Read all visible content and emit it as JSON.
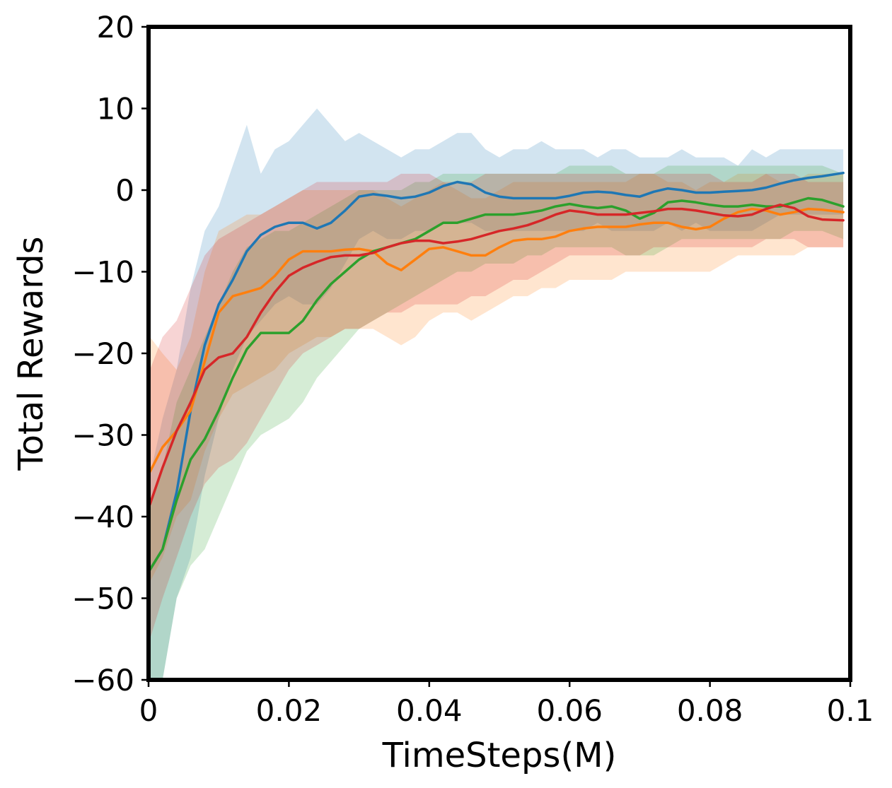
{
  "chart_data": {
    "type": "line",
    "title": "",
    "xlabel": "TimeSteps(M)",
    "ylabel": "Total Rewards",
    "xlim": [
      0,
      0.1
    ],
    "ylim": [
      -60,
      20
    ],
    "x_ticks": [
      0,
      0.02,
      0.04,
      0.06,
      0.08,
      0.1
    ],
    "x_tick_labels": [
      "0",
      "0.02",
      "0.04",
      "0.06",
      "0.08",
      "0.1"
    ],
    "y_ticks": [
      20,
      10,
      0,
      -10,
      -20,
      -30,
      -40,
      -50,
      -60
    ],
    "y_tick_labels": [
      "20",
      "10",
      "0",
      "−10",
      "−20",
      "−30",
      "−40",
      "−50",
      "−60"
    ],
    "grid": false,
    "legend": "none",
    "x": [
      0.0002,
      0.002,
      0.004,
      0.006,
      0.008,
      0.01,
      0.012,
      0.014,
      0.016,
      0.018,
      0.02,
      0.022,
      0.024,
      0.026,
      0.028,
      0.03,
      0.032,
      0.034,
      0.036,
      0.038,
      0.04,
      0.042,
      0.044,
      0.046,
      0.048,
      0.05,
      0.052,
      0.054,
      0.056,
      0.058,
      0.06,
      0.062,
      0.064,
      0.066,
      0.068,
      0.07,
      0.072,
      0.074,
      0.076,
      0.078,
      0.08,
      0.082,
      0.084,
      0.086,
      0.088,
      0.09,
      0.092,
      0.094,
      0.096,
      0.099
    ],
    "series": [
      {
        "color": "#1f77b4",
        "values": [
          -46.5,
          -44,
          -37,
          -27,
          -19,
          -14,
          -11,
          -7.5,
          -5.5,
          -4.5,
          -4,
          -4,
          -4.7,
          -4,
          -2.5,
          -0.8,
          -0.5,
          -0.7,
          -1,
          -0.8,
          -0.3,
          0.5,
          1,
          0.7,
          -0.3,
          -0.8,
          -1,
          -1,
          -1,
          -1,
          -0.7,
          -0.3,
          -0.2,
          -0.3,
          -0.6,
          -0.8,
          -0.2,
          0.2,
          0,
          -0.3,
          -0.3,
          -0.2,
          -0.1,
          0,
          0.3,
          0.8,
          1.2,
          1.5,
          1.7,
          2.1
        ],
        "upper": [
          -35,
          -28,
          -22,
          -12,
          -5,
          -2,
          3,
          8,
          2,
          5,
          6,
          8,
          10,
          8,
          6,
          7,
          6,
          5,
          4,
          5,
          5,
          6,
          7,
          7,
          5,
          4,
          5,
          5,
          6,
          5,
          5,
          5,
          4,
          5,
          5,
          4,
          4,
          4,
          5,
          4,
          4,
          4,
          3,
          5,
          4,
          5,
          5,
          5,
          5,
          5
        ],
        "lower": [
          -60,
          -60,
          -50,
          -45,
          -35,
          -28,
          -22,
          -18,
          -16,
          -14,
          -13,
          -14,
          -14,
          -12,
          -9,
          -6,
          -5,
          -6,
          -6,
          -5,
          -5,
          -4,
          -4,
          -4,
          -5,
          -5,
          -5,
          -5,
          -5,
          -5,
          -5,
          -5,
          -4,
          -5,
          -5,
          -5,
          -5,
          -4,
          -5,
          -4,
          -5,
          -5,
          -5,
          -5,
          -4,
          -3,
          -3,
          -3,
          -3,
          -3
        ]
      },
      {
        "color": "#ff7f0e",
        "values": [
          -34.5,
          -31.5,
          -29.5,
          -27,
          -21,
          -15,
          -13,
          -12.5,
          -12,
          -10.5,
          -8.5,
          -7.5,
          -7.5,
          -7.5,
          -7.3,
          -7.2,
          -7.5,
          -9,
          -9.8,
          -8.5,
          -7.2,
          -7,
          -7.5,
          -8,
          -8,
          -7,
          -6.2,
          -6,
          -6,
          -5.7,
          -5,
          -4.7,
          -4.5,
          -4.5,
          -4.5,
          -4.2,
          -4,
          -4,
          -4.5,
          -4.8,
          -4.5,
          -3.5,
          -2.7,
          -2.3,
          -2.5,
          -3,
          -2.7,
          -2.3,
          -2.4,
          -2.7
        ],
        "upper": [
          -18,
          -20,
          -22,
          -18,
          -10,
          -5,
          -4,
          -3,
          -3,
          -2,
          -1,
          0,
          0,
          0,
          0,
          0,
          0,
          -1,
          -2,
          -1,
          0,
          1,
          0,
          -1,
          -1,
          0,
          1,
          1,
          1,
          1,
          1,
          1,
          1,
          1,
          1,
          2,
          2,
          1,
          1,
          0,
          1,
          1,
          2,
          2,
          2,
          1,
          1,
          2,
          2,
          2
        ],
        "lower": [
          -48,
          -45,
          -40,
          -38,
          -32,
          -28,
          -25,
          -24,
          -23,
          -22,
          -20,
          -19,
          -18,
          -18,
          -17,
          -17,
          -17,
          -18,
          -19,
          -18,
          -16,
          -15,
          -15,
          -16,
          -15,
          -14,
          -13,
          -13,
          -12,
          -12,
          -11,
          -11,
          -11,
          -11,
          -10,
          -10,
          -10,
          -10,
          -10,
          -10,
          -10,
          -9,
          -8,
          -8,
          -8,
          -8,
          -8,
          -7,
          -7,
          -7
        ]
      },
      {
        "color": "#2ca02c",
        "values": [
          -46.5,
          -44,
          -38,
          -33,
          -30.5,
          -27,
          -23,
          -19.5,
          -17.5,
          -17.5,
          -17.5,
          -16,
          -13.5,
          -11.5,
          -10,
          -8.5,
          -7.5,
          -7,
          -6.5,
          -6,
          -5,
          -4,
          -4,
          -3.5,
          -3,
          -3,
          -3,
          -2.8,
          -2.5,
          -2,
          -1.7,
          -2,
          -2.2,
          -2,
          -2.5,
          -3.5,
          -2.8,
          -1.5,
          -1.3,
          -1.5,
          -1.8,
          -2,
          -2,
          -1.8,
          -2,
          -2,
          -1.5,
          -1,
          -1.2,
          -2
        ],
        "upper": [
          -38,
          -34,
          -26,
          -22,
          -18,
          -14,
          -10,
          -7,
          -6,
          -5,
          -5,
          -4,
          -3,
          -2,
          -1,
          0,
          0,
          0,
          0,
          1,
          1,
          2,
          2,
          2,
          2,
          2,
          2,
          2,
          2,
          2,
          3,
          3,
          3,
          3,
          2,
          2,
          2,
          3,
          3,
          3,
          3,
          3,
          3,
          3,
          3,
          3,
          3,
          3,
          3,
          2
        ],
        "lower": [
          -60,
          -60,
          -50,
          -46,
          -44,
          -40,
          -36,
          -32,
          -30,
          -29,
          -28,
          -26,
          -23,
          -21,
          -19,
          -17,
          -16,
          -15,
          -14,
          -13,
          -12,
          -11,
          -10,
          -10,
          -9,
          -9,
          -9,
          -8,
          -8,
          -7,
          -7,
          -7,
          -7,
          -7,
          -8,
          -8,
          -8,
          -7,
          -6,
          -6,
          -6,
          -6,
          -6,
          -6,
          -6,
          -6,
          -5,
          -5,
          -5,
          -6
        ]
      },
      {
        "color": "#d62728",
        "values": [
          -38.5,
          -34,
          -29.5,
          -26,
          -22,
          -20.5,
          -20,
          -18,
          -15,
          -12.5,
          -10.5,
          -9.5,
          -8.8,
          -8.2,
          -8,
          -8,
          -7.7,
          -7,
          -6.5,
          -6.2,
          -6.2,
          -6.5,
          -6.3,
          -6,
          -5.5,
          -5,
          -4.7,
          -4.3,
          -3.7,
          -3,
          -2.5,
          -2.7,
          -3,
          -3,
          -3,
          -2.8,
          -2.6,
          -2.3,
          -2.3,
          -2.5,
          -2.8,
          -3.1,
          -3.2,
          -3,
          -2.3,
          -1.8,
          -2.2,
          -3.2,
          -3.6,
          -3.7
        ],
        "upper": [
          -22,
          -18,
          -16,
          -12,
          -8,
          -6,
          -5,
          -4,
          -3,
          -2,
          -1,
          0,
          1,
          1,
          1,
          1,
          1,
          1,
          2,
          2,
          2,
          1,
          1,
          1,
          2,
          2,
          2,
          2,
          2,
          2,
          2,
          2,
          2,
          2,
          2,
          2,
          2,
          2,
          2,
          2,
          2,
          1,
          1,
          1,
          2,
          2,
          2,
          1,
          1,
          1
        ],
        "lower": [
          -55,
          -50,
          -45,
          -40,
          -36,
          -34,
          -33,
          -31,
          -28,
          -25,
          -22,
          -20,
          -19,
          -18,
          -17,
          -17,
          -16,
          -15,
          -15,
          -14,
          -14,
          -14,
          -14,
          -13,
          -13,
          -12,
          -11,
          -11,
          -10,
          -9,
          -8,
          -8,
          -8,
          -8,
          -8,
          -8,
          -7,
          -7,
          -7,
          -7,
          -7,
          -7,
          -7,
          -7,
          -6,
          -6,
          -6,
          -7,
          -7,
          -7
        ]
      }
    ]
  }
}
